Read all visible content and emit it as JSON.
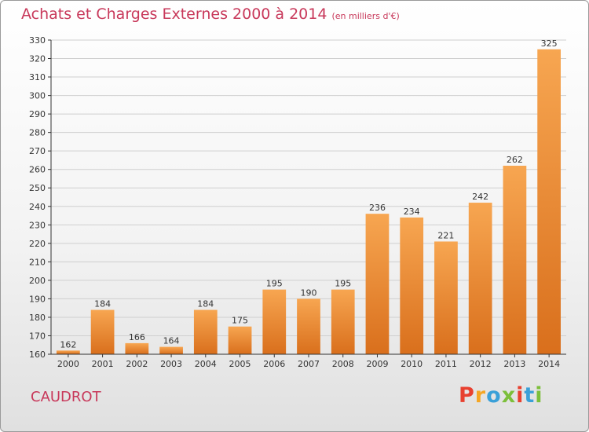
{
  "header": {
    "title": "Achats et Charges Externes 2000 à 2014",
    "subtitle": "(en milliers d'€)"
  },
  "footer": {
    "city": "CAUDROT",
    "logo_text": "Proxiti"
  },
  "colors": {
    "title": "#c8385a",
    "bar_top": "#f7a651",
    "bar_bottom": "#d96f1c",
    "logo_letters": [
      "#e8402f",
      "#f5a623",
      "#3aa0d8",
      "#7cbf3a",
      "#e8402f",
      "#3aa0d8",
      "#7cbf3a"
    ]
  },
  "chart_data": {
    "type": "bar",
    "title": "Achats et Charges Externes 2000 à 2014",
    "subtitle": "(en milliers d'€)",
    "xlabel": "",
    "ylabel": "",
    "categories": [
      "2000",
      "2001",
      "2002",
      "2003",
      "2004",
      "2005",
      "2006",
      "2007",
      "2008",
      "2009",
      "2010",
      "2011",
      "2012",
      "2013",
      "2014"
    ],
    "values": [
      162,
      184,
      166,
      164,
      184,
      175,
      195,
      190,
      195,
      236,
      234,
      221,
      242,
      262,
      325
    ],
    "ylim": [
      160,
      330
    ],
    "yticks": [
      160,
      170,
      180,
      190,
      200,
      210,
      220,
      230,
      240,
      250,
      260,
      270,
      280,
      290,
      300,
      310,
      320,
      330
    ],
    "grid": true,
    "legend": "none"
  }
}
